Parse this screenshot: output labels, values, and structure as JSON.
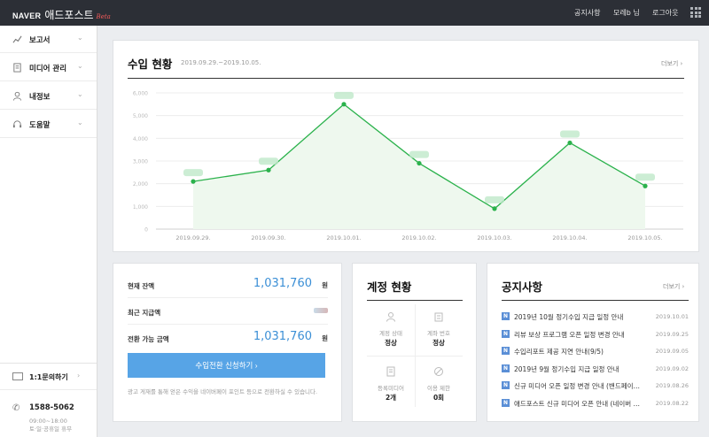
{
  "header": {
    "logo_naver": "NAVER",
    "logo_title": "애드포스트",
    "logo_beta": "Beta",
    "nav": [
      "공지사항",
      "모레b 님",
      "로그아웃"
    ]
  },
  "sidebar": {
    "items": [
      {
        "label": "보고서",
        "icon": "chart-icon"
      },
      {
        "label": "미디어 관리",
        "icon": "document-icon"
      },
      {
        "label": "내정보",
        "icon": "user-icon"
      },
      {
        "label": "도움말",
        "icon": "headset-icon"
      }
    ],
    "inquiry_label": "1:1문의하기",
    "phone": "1588-5062",
    "hours_line1": "09:00~18:00",
    "hours_line2": "토·일·공휴일 휴무"
  },
  "revenue": {
    "title": "수입 현황",
    "period": "2019.09.29.~2019.10.05.",
    "more": "더보기"
  },
  "chart_data": {
    "type": "area",
    "categories": [
      "2019.09.29.",
      "2019.09.30.",
      "2019.10.01.",
      "2019.10.02.",
      "2019.10.03.",
      "2019.10.04.",
      "2019.10.05."
    ],
    "values": [
      2100,
      2600,
      5500,
      2900,
      900,
      3800,
      1900
    ],
    "ylim": [
      0,
      6000
    ],
    "yticks": [
      0,
      1000,
      2000,
      3000,
      4000,
      5000,
      6000
    ],
    "ytick_labels": [
      "0",
      "1,000",
      "2,000",
      "3,000",
      "4,000",
      "5,000",
      "6,000"
    ],
    "color": "#2bb24c",
    "fill": "#eef8ee",
    "grid": true
  },
  "balance": {
    "rows": [
      {
        "label": "현재 잔액",
        "value": "1,031,760",
        "unit": "원"
      },
      {
        "label": "최근 지급액",
        "value": "",
        "unit": ""
      },
      {
        "label": "전환 가능 금액",
        "value": "1,031,760",
        "unit": "원"
      }
    ],
    "button_label": "수입전환 신청하기",
    "note": "광고 게재를 통해 얻은 수익을 네이버페이 포인트 등으로 전환하실 수 있습니다."
  },
  "account": {
    "title": "계정 현황",
    "cells": [
      {
        "label": "계정 상태",
        "value": "정상",
        "icon": "user-icon"
      },
      {
        "label": "계좌 번호",
        "value": "정상",
        "icon": "bank-icon"
      },
      {
        "label": "등록미디어",
        "value": "2개",
        "icon": "document-icon"
      },
      {
        "label": "이용 제한",
        "value": "0회",
        "icon": "ban-icon"
      }
    ]
  },
  "notices": {
    "title": "공지사항",
    "more": "더보기",
    "items": [
      {
        "badge": "N",
        "title": "2019년 10월 정기수입 지급 일정 안내",
        "date": "2019.10.01"
      },
      {
        "badge": "N",
        "title": "리뷰 보상 프로그램 오픈 일정 변경 안내",
        "date": "2019.09.25"
      },
      {
        "badge": "N",
        "title": "수입리포트 제공 지연 안내(9/5)",
        "date": "2019.09.05"
      },
      {
        "badge": "N",
        "title": "2019년 9월 정기수입 지급 일정 안내",
        "date": "2019.09.02"
      },
      {
        "badge": "N",
        "title": "신규 미디어 오픈 일정 변경 안내 (밴드페이지 블로그)",
        "date": "2019.08.26"
      },
      {
        "badge": "N",
        "title": "애드포스트 신규 미디어 오픈 안내 (네이버 블로그)",
        "date": "2019.08.22"
      }
    ]
  }
}
